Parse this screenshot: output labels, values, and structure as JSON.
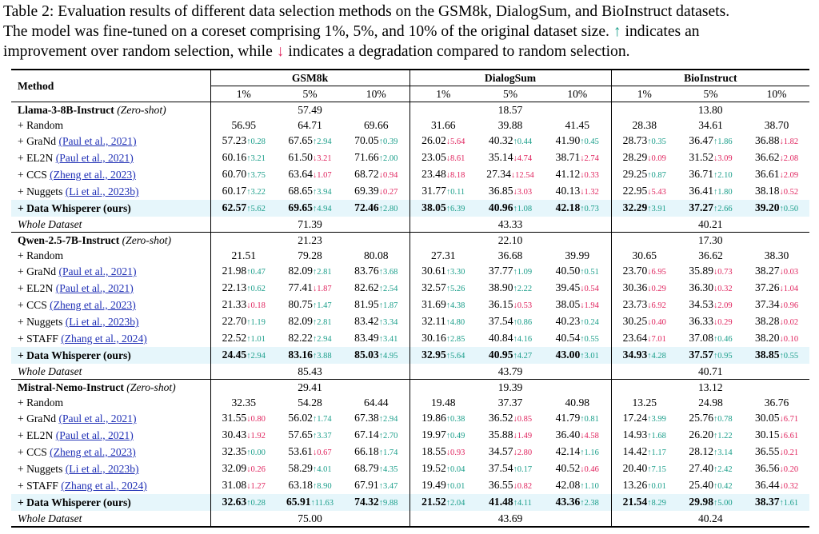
{
  "caption": {
    "line1": "Table 2: Evaluation results of different data selection methods on the GSM8k, DialogSum, and BioInstruct datasets.",
    "line2_a": "The model was fine-tuned on a coreset comprising 1%, 5%, and 10% of the original dataset size.",
    "up_arrow": "↑",
    "line2_b": "indicates an",
    "line3_a": "improvement over random selection, while",
    "down_arrow": "↓",
    "line3_b": "indicates a degradation compared to random selection."
  },
  "header": {
    "method": "Method",
    "datasets": [
      "GSM8k",
      "DialogSum",
      "BioInstruct"
    ],
    "percents": [
      "1%",
      "5%",
      "10%",
      "1%",
      "5%",
      "10%",
      "1%",
      "5%",
      "10%"
    ]
  },
  "colors": {
    "up": "#1a9e8a",
    "down": "#e0245e",
    "cite": "#1f2fb5",
    "highlight": "#e6f6fb"
  },
  "sections": [
    {
      "name": "Llama-3-8B-Instruct",
      "tag": "(Zero-shot)",
      "zero_shot": [
        "57.49",
        "18.57",
        "13.80"
      ],
      "rows": [
        {
          "label": "+ Random",
          "cite": "",
          "vals": [
            "56.95",
            "64.71",
            "69.66",
            "31.66",
            "39.88",
            "41.45",
            "28.38",
            "34.61",
            "38.70"
          ]
        },
        {
          "label": "+ GraNd",
          "cite": "(Paul et al., 2021)",
          "vals": [
            "57.23",
            "67.65",
            "70.05",
            "26.02",
            "40.32",
            "41.90",
            "28.73",
            "36.47",
            "36.88"
          ],
          "deltas": [
            "↑0.28",
            "↑2.94",
            "↑0.39",
            "↓5.64",
            "↑0.44",
            "↑0.45",
            "↑0.35",
            "↑1.86",
            "↓1.82"
          ]
        },
        {
          "label": "+ EL2N",
          "cite": "(Paul et al., 2021)",
          "vals": [
            "60.16",
            "61.50",
            "71.66",
            "23.05",
            "35.14",
            "38.71",
            "28.29",
            "31.52",
            "36.62"
          ],
          "deltas": [
            "↑3.21",
            "↓3.21",
            "↑2.00",
            "↓8.61",
            "↓4.74",
            "↓2.74",
            "↓0.09",
            "↓3.09",
            "↓2.08"
          ]
        },
        {
          "label": "+ CCS",
          "cite": "(Zheng et al., 2023)",
          "vals": [
            "60.70",
            "63.64",
            "68.72",
            "23.48",
            "27.34",
            "41.12",
            "29.25",
            "36.71",
            "36.61"
          ],
          "deltas": [
            "↑3.75",
            "↓1.07",
            "↓0.94",
            "↓8.18",
            "↓12.54",
            "↓0.33",
            "↑0.87",
            "↑2.10",
            "↓2.09"
          ]
        },
        {
          "label": "+ Nuggets",
          "cite": "(Li et al., 2023b)",
          "vals": [
            "60.17",
            "68.65",
            "69.39",
            "31.77",
            "36.85",
            "40.13",
            "22.95",
            "36.41",
            "38.18"
          ],
          "deltas": [
            "↑3.22",
            "↑3.94",
            "↓0.27",
            "↑0.11",
            "↓3.03",
            "↓1.32",
            "↓5.43",
            "↑1.80",
            "↓0.52"
          ]
        },
        {
          "label": "+ Data Whisperer (ours)",
          "cite": "",
          "hl": true,
          "vals": [
            "62.57",
            "69.65",
            "72.46",
            "38.05",
            "40.96",
            "42.18",
            "32.29",
            "37.27",
            "39.20"
          ],
          "deltas": [
            "↑5.62",
            "↑4.94",
            "↑2.80",
            "↑6.39",
            "↑1.08",
            "↑0.73",
            "↑3.91",
            "↑2.66",
            "↑0.50"
          ]
        }
      ],
      "whole": [
        "71.39",
        "43.33",
        "40.21"
      ]
    },
    {
      "name": "Qwen-2.5-7B-Instruct",
      "tag": "(Zero-shot)",
      "zero_shot": [
        "21.23",
        "22.10",
        "17.30"
      ],
      "rows": [
        {
          "label": "+ Random",
          "cite": "",
          "vals": [
            "21.51",
            "79.28",
            "80.08",
            "27.31",
            "36.68",
            "39.99",
            "30.65",
            "36.62",
            "38.30"
          ]
        },
        {
          "label": "+ GraNd",
          "cite": "(Paul et al., 2021)",
          "vals": [
            "21.98",
            "82.09",
            "83.76",
            "30.61",
            "37.77",
            "40.50",
            "23.70",
            "35.89",
            "38.27"
          ],
          "deltas": [
            "↑0.47",
            "↑2.81",
            "↑3.68",
            "↑3.30",
            "↑1.09",
            "↑0.51",
            "↓6.95",
            "↓0.73",
            "↓0.03"
          ]
        },
        {
          "label": "+ EL2N",
          "cite": "(Paul et al., 2021)",
          "vals": [
            "22.13",
            "77.41",
            "82.62",
            "32.57",
            "38.90",
            "39.45",
            "30.36",
            "36.30",
            "37.26"
          ],
          "deltas": [
            "↑0.62",
            "↓1.87",
            "↑2.54",
            "↑5.26",
            "↑2.22",
            "↓0.54",
            "↓0.29",
            "↓0.32",
            "↓1.04"
          ]
        },
        {
          "label": "+ CCS",
          "cite": "(Zheng et al., 2023)",
          "vals": [
            "21.33",
            "80.75",
            "81.95",
            "31.69",
            "36.15",
            "38.05",
            "23.73",
            "34.53",
            "37.34"
          ],
          "deltas": [
            "↓0.18",
            "↑1.47",
            "↑1.87",
            "↑4.38",
            "↓0.53",
            "↓1.94",
            "↓6.92",
            "↓2.09",
            "↓0.96"
          ]
        },
        {
          "label": "+ Nuggets",
          "cite": "(Li et al., 2023b)",
          "vals": [
            "22.70",
            "82.09",
            "83.42",
            "32.11",
            "37.54",
            "40.23",
            "30.25",
            "36.33",
            "38.28"
          ],
          "deltas": [
            "↑1.19",
            "↑2.81",
            "↑3.34",
            "↑4.80",
            "↑0.86",
            "↑0.24",
            "↓0.40",
            "↓0.29",
            "↓0.02"
          ]
        },
        {
          "label": "+ STAFF",
          "cite": "(Zhang et al., 2024)",
          "vals": [
            "22.52",
            "82.22",
            "83.49",
            "30.16",
            "40.84",
            "40.54",
            "23.64",
            "37.08",
            "38.20"
          ],
          "deltas": [
            "↑1.01",
            "↑2.94",
            "↑3.41",
            "↑2.85",
            "↑4.16",
            "↑0.55",
            "↓7.01",
            "↑0.46",
            "↓0.10"
          ]
        },
        {
          "label": "+ Data Whisperer (ours)",
          "cite": "",
          "hl": true,
          "vals": [
            "24.45",
            "83.16",
            "85.03",
            "32.95",
            "40.95",
            "43.00",
            "34.93",
            "37.57",
            "38.85"
          ],
          "deltas": [
            "↑2.94",
            "↑3.88",
            "↑4.95",
            "↑5.64",
            "↑4.27",
            "↑3.01",
            "↑4.28",
            "↑0.95",
            "↑0.55"
          ]
        }
      ],
      "whole": [
        "85.43",
        "43.79",
        "40.71"
      ]
    },
    {
      "name": "Mistral-Nemo-Instruct",
      "tag": "(Zero-shot)",
      "zero_shot": [
        "29.41",
        "19.39",
        "13.12"
      ],
      "rows": [
        {
          "label": "+ Random",
          "cite": "",
          "vals": [
            "32.35",
            "54.28",
            "64.44",
            "19.48",
            "37.37",
            "40.98",
            "13.25",
            "24.98",
            "36.76"
          ]
        },
        {
          "label": "+ GraNd",
          "cite": "(Paul et al., 2021)",
          "vals": [
            "31.55",
            "56.02",
            "67.38",
            "19.86",
            "36.52",
            "41.79",
            "17.24",
            "25.76",
            "30.05"
          ],
          "deltas": [
            "↓0.80",
            "↑1.74",
            "↑2.94",
            "↑0.38",
            "↓0.85",
            "↑0.81",
            "↑3.99",
            "↑0.78",
            "↓6.71"
          ]
        },
        {
          "label": "+ EL2N",
          "cite": "(Paul et al., 2021)",
          "vals": [
            "30.43",
            "57.65",
            "67.14",
            "19.97",
            "35.88",
            "36.40",
            "14.93",
            "26.20",
            "30.15"
          ],
          "deltas": [
            "↓1.92",
            "↑3.37",
            "↑2.70",
            "↑0.49",
            "↓1.49",
            "↓4.58",
            "↑1.68",
            "↑1.22",
            "↓6.61"
          ]
        },
        {
          "label": "+ CCS",
          "cite": "(Zheng et al., 2023)",
          "vals": [
            "32.35",
            "53.61",
            "66.18",
            "18.55",
            "34.57",
            "42.14",
            "14.42",
            "28.12",
            "36.55"
          ],
          "deltas": [
            "↑0.00",
            "↓0.67",
            "↑1.74",
            "↓0.93",
            "↓2.80",
            "↑1.16",
            "↑1.17",
            "↑3.14",
            "↓0.21"
          ]
        },
        {
          "label": "+ Nuggets",
          "cite": "(Li et al., 2023b)",
          "vals": [
            "32.09",
            "58.29",
            "68.79",
            "19.52",
            "37.54",
            "40.52",
            "20.40",
            "27.40",
            "36.56"
          ],
          "deltas": [
            "↓0.26",
            "↑4.01",
            "↑4.35",
            "↑0.04",
            "↑0.17",
            "↓0.46",
            "↑7.15",
            "↑2.42",
            "↓0.20"
          ]
        },
        {
          "label": "+ STAFF",
          "cite": "(Zhang et al., 2024)",
          "vals": [
            "31.08",
            "63.18",
            "67.91",
            "19.49",
            "36.55",
            "42.08",
            "13.26",
            "25.40",
            "36.44"
          ],
          "deltas": [
            "↓1.27",
            "↑8.90",
            "↑3.47",
            "↑0.01",
            "↓0.82",
            "↑1.10",
            "↑0.01",
            "↑0.42",
            "↓0.32"
          ]
        },
        {
          "label": "+ Data Whisperer (ours)",
          "cite": "",
          "hl": true,
          "vals": [
            "32.63",
            "65.91",
            "74.32",
            "21.52",
            "41.48",
            "43.36",
            "21.54",
            "29.98",
            "38.37"
          ],
          "deltas": [
            "↑0.28",
            "↑11.63",
            "↑9.88",
            "↑2.04",
            "↑4.11",
            "↑2.38",
            "↑8.29",
            "↑5.00",
            "↑1.61"
          ]
        }
      ],
      "whole": [
        "75.00",
        "43.69",
        "40.24"
      ]
    }
  ],
  "whole_label": "Whole Dataset"
}
